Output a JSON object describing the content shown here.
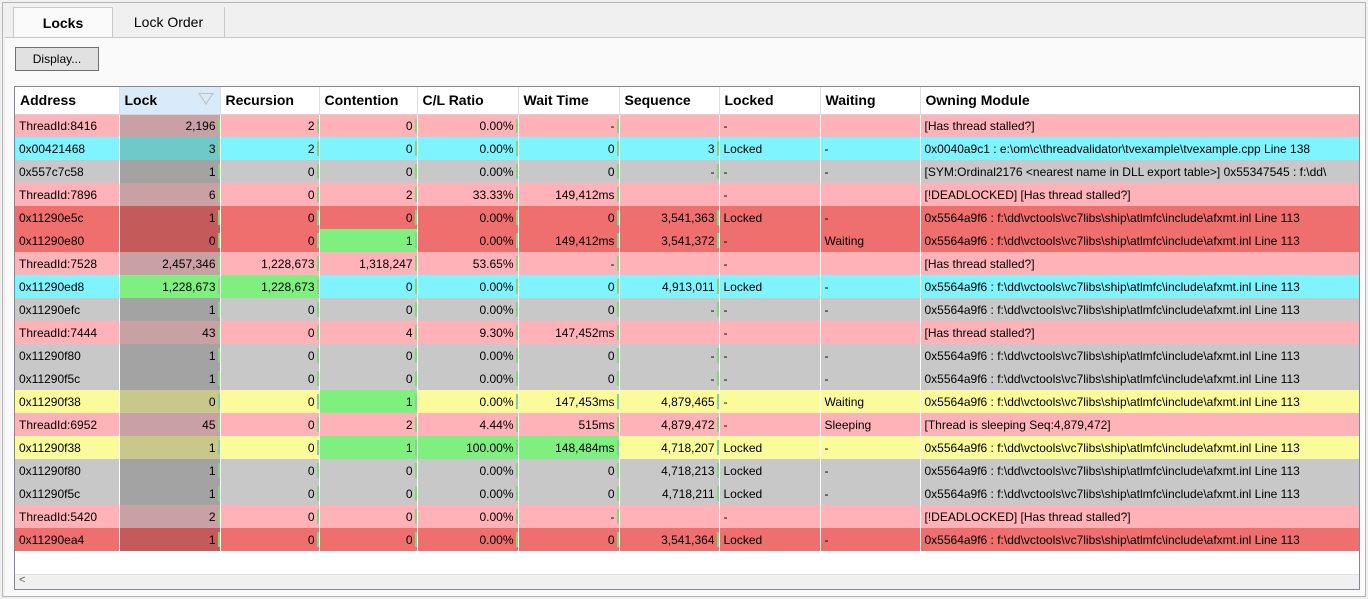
{
  "tabs": [
    {
      "label": "Locks",
      "active": true
    },
    {
      "label": "Lock Order",
      "active": false
    }
  ],
  "toolbar": {
    "display_label": "Display..."
  },
  "grid": {
    "sorted_column": "Lock",
    "columns": [
      "Address",
      "Lock",
      "Recursion",
      "Contention",
      "C/L Ratio",
      "Wait Time",
      "Sequence",
      "Locked",
      "Waiting",
      "Owning Module"
    ],
    "rows": [
      {
        "color": "pink",
        "cells": [
          "ThreadId:8416",
          "2,196",
          "2",
          "0",
          "0.00%",
          "-",
          "",
          "-",
          "",
          "[Has thread stalled?]"
        ]
      },
      {
        "color": "cyan",
        "cells": [
          "0x00421468",
          "3",
          "2",
          "0",
          "0.00%",
          "0",
          "3",
          "Locked",
          "-",
          "0x0040a9c1 : e:\\om\\c\\threadvalidator\\tvexample\\tvexample.cpp Line 138"
        ]
      },
      {
        "color": "gray",
        "cells": [
          "0x557c7c58",
          "1",
          "0",
          "0",
          "0.00%",
          "0",
          "-",
          "-",
          "-",
          "[SYM:Ordinal2176 <nearest name in DLL export table>] 0x55347545 : f:\\dd\\"
        ]
      },
      {
        "color": "pink",
        "cells": [
          "ThreadId:7896",
          "6",
          "0",
          "2",
          "33.33%",
          "149,412ms",
          "",
          "-",
          "",
          "[!DEADLOCKED] [Has thread stalled?]"
        ]
      },
      {
        "color": "red",
        "cells": [
          "0x11290e5c",
          "1",
          "0",
          "0",
          "0.00%",
          "0",
          "3,541,363",
          "Locked",
          "-",
          "0x5564a9f6 : f:\\dd\\vctools\\vc7libs\\ship\\atlmfc\\include\\afxmt.inl Line 113"
        ]
      },
      {
        "color": "red",
        "cells": [
          "0x11290e80",
          "0",
          "0",
          "1",
          "0.00%",
          "149,412ms",
          "3,541,372",
          "-",
          "Waiting",
          "0x5564a9f6 : f:\\dd\\vctools\\vc7libs\\ship\\atlmfc\\include\\afxmt.inl Line 113"
        ]
      },
      {
        "color": "pink",
        "cells": [
          "ThreadId:7528",
          "2,457,346",
          "1,228,673",
          "1,318,247",
          "53.65%",
          "-",
          "",
          "-",
          "",
          "[Has thread stalled?]"
        ]
      },
      {
        "color": "cyan",
        "cells": [
          "0x11290ed8",
          "1,228,673",
          "1,228,673",
          "0",
          "0.00%",
          "0",
          "4,913,011",
          "Locked",
          "-",
          "0x5564a9f6 : f:\\dd\\vctools\\vc7libs\\ship\\atlmfc\\include\\afxmt.inl Line 113"
        ]
      },
      {
        "color": "gray",
        "cells": [
          "0x11290efc",
          "1",
          "0",
          "0",
          "0.00%",
          "0",
          "-",
          "-",
          "-",
          "0x5564a9f6 : f:\\dd\\vctools\\vc7libs\\ship\\atlmfc\\include\\afxmt.inl Line 113"
        ]
      },
      {
        "color": "pink",
        "cells": [
          "ThreadId:7444",
          "43",
          "0",
          "4",
          "9.30%",
          "147,452ms",
          "",
          "-",
          "",
          "[Has thread stalled?]"
        ]
      },
      {
        "color": "gray",
        "cells": [
          "0x11290f80",
          "1",
          "0",
          "0",
          "0.00%",
          "0",
          "-",
          "-",
          "-",
          "0x5564a9f6 : f:\\dd\\vctools\\vc7libs\\ship\\atlmfc\\include\\afxmt.inl Line 113"
        ]
      },
      {
        "color": "gray",
        "cells": [
          "0x11290f5c",
          "1",
          "0",
          "0",
          "0.00%",
          "0",
          "-",
          "-",
          "-",
          "0x5564a9f6 : f:\\dd\\vctools\\vc7libs\\ship\\atlmfc\\include\\afxmt.inl Line 113"
        ]
      },
      {
        "color": "yellow",
        "cells": [
          "0x11290f38",
          "0",
          "0",
          "1",
          "0.00%",
          "147,453ms",
          "4,879,465",
          "-",
          "Waiting",
          "0x5564a9f6 : f:\\dd\\vctools\\vc7libs\\ship\\atlmfc\\include\\afxmt.inl Line 113"
        ]
      },
      {
        "color": "pink",
        "cells": [
          "ThreadId:6952",
          "45",
          "0",
          "2",
          "4.44%",
          "515ms",
          "4,879,472",
          "-",
          "Sleeping",
          "[Thread is sleeping Seq:4,879,472]"
        ]
      },
      {
        "color": "yellow",
        "cells": [
          "0x11290f38",
          "1",
          "0",
          "1",
          "100.00%",
          "148,484ms",
          "4,718,207",
          "Locked",
          "-",
          "0x5564a9f6 : f:\\dd\\vctools\\vc7libs\\ship\\atlmfc\\include\\afxmt.inl Line 113"
        ]
      },
      {
        "color": "gray",
        "cells": [
          "0x11290f80",
          "1",
          "0",
          "0",
          "0.00%",
          "0",
          "4,718,213",
          "Locked",
          "-",
          "0x5564a9f6 : f:\\dd\\vctools\\vc7libs\\ship\\atlmfc\\include\\afxmt.inl Line 113"
        ]
      },
      {
        "color": "gray",
        "cells": [
          "0x11290f5c",
          "1",
          "0",
          "0",
          "0.00%",
          "0",
          "4,718,211",
          "Locked",
          "-",
          "0x5564a9f6 : f:\\dd\\vctools\\vc7libs\\ship\\atlmfc\\include\\afxmt.inl Line 113"
        ]
      },
      {
        "color": "pink",
        "cells": [
          "ThreadId:5420",
          "2",
          "0",
          "0",
          "0.00%",
          "-",
          "",
          "-",
          "",
          "[!DEADLOCKED] [Has thread stalled?]"
        ]
      },
      {
        "color": "red",
        "cells": [
          "0x11290ea4",
          "1",
          "0",
          "0",
          "0.00%",
          "0",
          "3,541,364",
          "Locked",
          "-",
          "0x5564a9f6 : f:\\dd\\vctools\\vc7libs\\ship\\atlmfc\\include\\afxmt.inl Line 113"
        ]
      }
    ],
    "highlights": [
      {
        "row": 5,
        "col": 3
      },
      {
        "row": 7,
        "col": 1
      },
      {
        "row": 7,
        "col": 2
      },
      {
        "row": 12,
        "col": 3
      },
      {
        "row": 14,
        "col": 3
      },
      {
        "row": 14,
        "col": 4
      },
      {
        "row": 14,
        "col": 5
      }
    ]
  },
  "scrollbar": {
    "left_arrow_icon": "chevron-left-icon",
    "left_arrow_glyph": "<"
  }
}
